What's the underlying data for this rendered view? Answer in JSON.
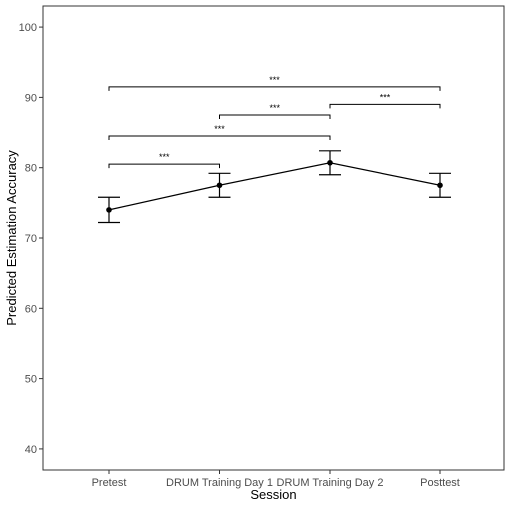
{
  "chart_data": {
    "type": "line",
    "title": "",
    "xlabel": "Session",
    "ylabel": "Predicted Estimation Accuracy",
    "categories": [
      "Pretest",
      "DRUM Training Day 1",
      "DRUM Training Day 2",
      "Posttest"
    ],
    "ylim": [
      37,
      103
    ],
    "yticks": [
      40,
      50,
      60,
      70,
      80,
      90,
      100
    ],
    "grid": false,
    "series": [
      {
        "values": [
          74.0,
          77.5,
          80.7,
          77.5
        ],
        "error_low": [
          72.2,
          75.8,
          79.0,
          75.8
        ],
        "error_high": [
          75.8,
          79.2,
          82.4,
          79.2
        ]
      }
    ],
    "significance": [
      {
        "from": 0,
        "to": 1,
        "y": 80.5,
        "label": "***"
      },
      {
        "from": 0,
        "to": 2,
        "y": 84.5,
        "label": "***"
      },
      {
        "from": 1,
        "to": 2,
        "y": 87.5,
        "label": "***"
      },
      {
        "from": 2,
        "to": 3,
        "y": 89.0,
        "label": "***"
      },
      {
        "from": 0,
        "to": 3,
        "y": 91.5,
        "label": "***"
      }
    ],
    "colors": {
      "line": "#000000",
      "panel_border": "#333333",
      "tick_text": "#4d4d4d"
    }
  }
}
